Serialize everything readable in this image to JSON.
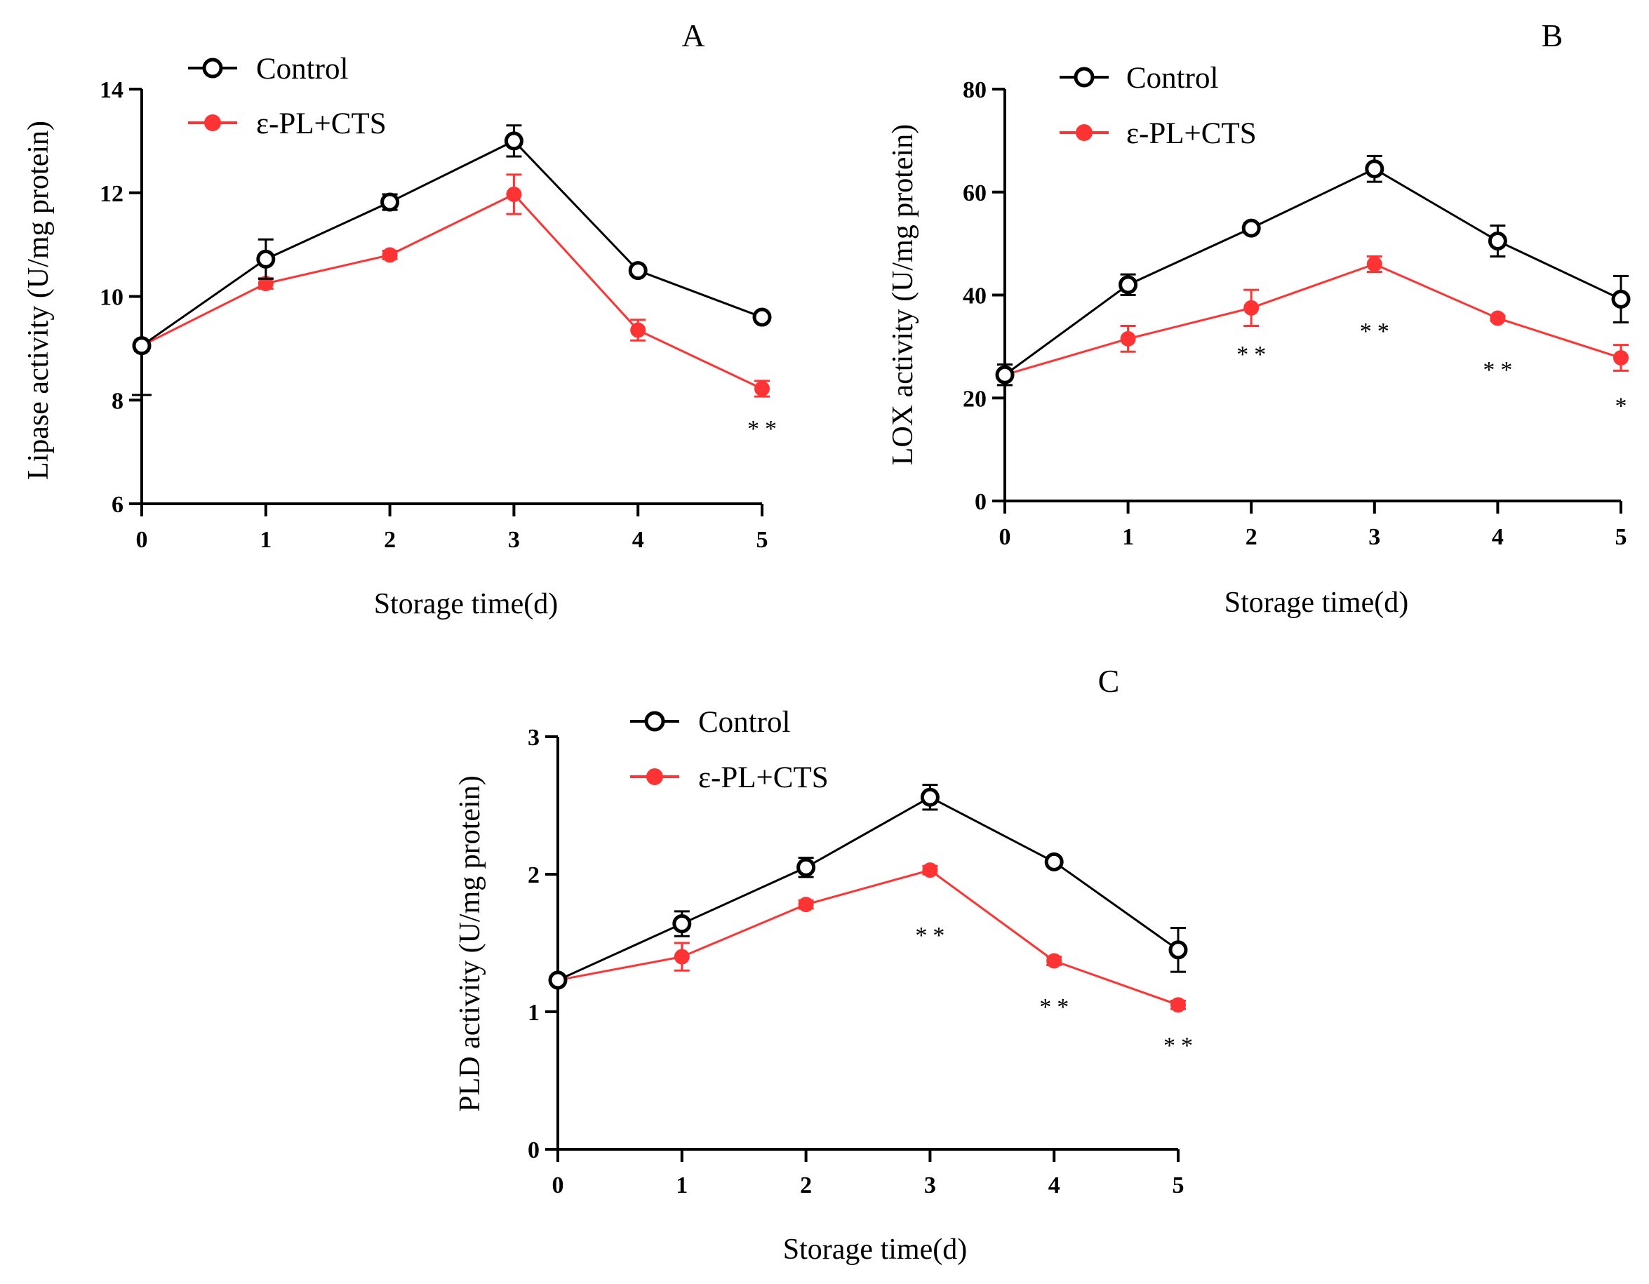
{
  "figure": {
    "charts_order": [
      "A",
      "B",
      "C"
    ]
  },
  "chart_data": [
    {
      "panel": "A",
      "type": "line",
      "title": "A",
      "xlabel": "Storage time(d)",
      "ylabel": "Lipase activity (U/mg protein)",
      "xlim": [
        0,
        5
      ],
      "ylim": [
        6,
        14
      ],
      "x_ticks": [
        0,
        1,
        2,
        3,
        4,
        5
      ],
      "y_ticks": [
        6,
        8,
        10,
        12,
        14
      ],
      "x": [
        0,
        1,
        2,
        3,
        4,
        5
      ],
      "legend_position": "top-left",
      "series": [
        {
          "name": "Control",
          "color": "#000000",
          "marker": "open-circle",
          "values": [
            9.05,
            10.72,
            11.82,
            13.0,
            10.5,
            9.6
          ],
          "errors": [
            0.1,
            0.38,
            0.15,
            0.3,
            0.08,
            0.08
          ]
        },
        {
          "name": "ε-PL+CTS",
          "color": "#ff3333",
          "marker": "filled-circle",
          "values": [
            9.05,
            10.25,
            10.8,
            11.97,
            9.35,
            8.22
          ],
          "errors": [
            0.1,
            0.1,
            0.08,
            0.38,
            0.2,
            0.15
          ]
        }
      ],
      "annotations": [
        {
          "x": 5,
          "y": 7.3,
          "text": "**"
        }
      ],
      "minor_tick": 8.1
    },
    {
      "panel": "B",
      "type": "line",
      "title": "B",
      "xlabel": "Storage time(d)",
      "ylabel": "LOX activity (U/mg protein)",
      "xlim": [
        0,
        5
      ],
      "ylim": [
        0,
        80
      ],
      "x_ticks": [
        0,
        1,
        2,
        3,
        4,
        5
      ],
      "y_ticks": [
        0,
        20,
        40,
        60,
        80
      ],
      "x": [
        0,
        1,
        2,
        3,
        4,
        5
      ],
      "legend_position": "top-left",
      "series": [
        {
          "name": "Control",
          "color": "#000000",
          "marker": "open-circle",
          "values": [
            24.5,
            42.0,
            53.0,
            64.5,
            50.5,
            39.2
          ],
          "errors": [
            2.0,
            2.0,
            1.0,
            2.5,
            3.0,
            4.5
          ]
        },
        {
          "name": "ε-PL+CTS",
          "color": "#ff3333",
          "marker": "filled-circle",
          "values": [
            24.5,
            31.5,
            37.5,
            46.0,
            35.5,
            27.8
          ],
          "errors": [
            2.0,
            2.5,
            3.5,
            1.5,
            0.5,
            2.5
          ]
        }
      ],
      "annotations": [
        {
          "x": 2,
          "y": 27,
          "text": "**"
        },
        {
          "x": 3,
          "y": 31.5,
          "text": "**"
        },
        {
          "x": 4,
          "y": 24,
          "text": "**"
        },
        {
          "x": 5,
          "y": 17,
          "text": "*"
        }
      ]
    },
    {
      "panel": "C",
      "type": "line",
      "title": "C",
      "xlabel": "Storage time(d)",
      "ylabel": "PLD activity (U/mg protein)",
      "xlim": [
        0,
        5
      ],
      "ylim": [
        0,
        3
      ],
      "x_ticks": [
        0,
        1,
        2,
        3,
        4,
        5
      ],
      "y_ticks": [
        0,
        1,
        2,
        3
      ],
      "x": [
        0,
        1,
        2,
        3,
        4,
        5
      ],
      "legend_position": "top-left",
      "series": [
        {
          "name": "Control",
          "color": "#000000",
          "marker": "open-circle",
          "values": [
            1.23,
            1.64,
            2.05,
            2.56,
            2.09,
            1.45
          ],
          "errors": [
            0.03,
            0.09,
            0.07,
            0.09,
            0.03,
            0.16
          ]
        },
        {
          "name": "ε-PL+CTS",
          "color": "#ff3333",
          "marker": "filled-circle",
          "values": [
            1.23,
            1.4,
            1.78,
            2.03,
            1.37,
            1.05
          ],
          "errors": [
            0.03,
            0.1,
            0.03,
            0.03,
            0.03,
            0.03
          ]
        }
      ],
      "annotations": [
        {
          "x": 3,
          "y": 1.5,
          "text": "**"
        },
        {
          "x": 4,
          "y": 0.98,
          "text": "**"
        },
        {
          "x": 5,
          "y": 0.7,
          "text": "**"
        }
      ]
    }
  ]
}
